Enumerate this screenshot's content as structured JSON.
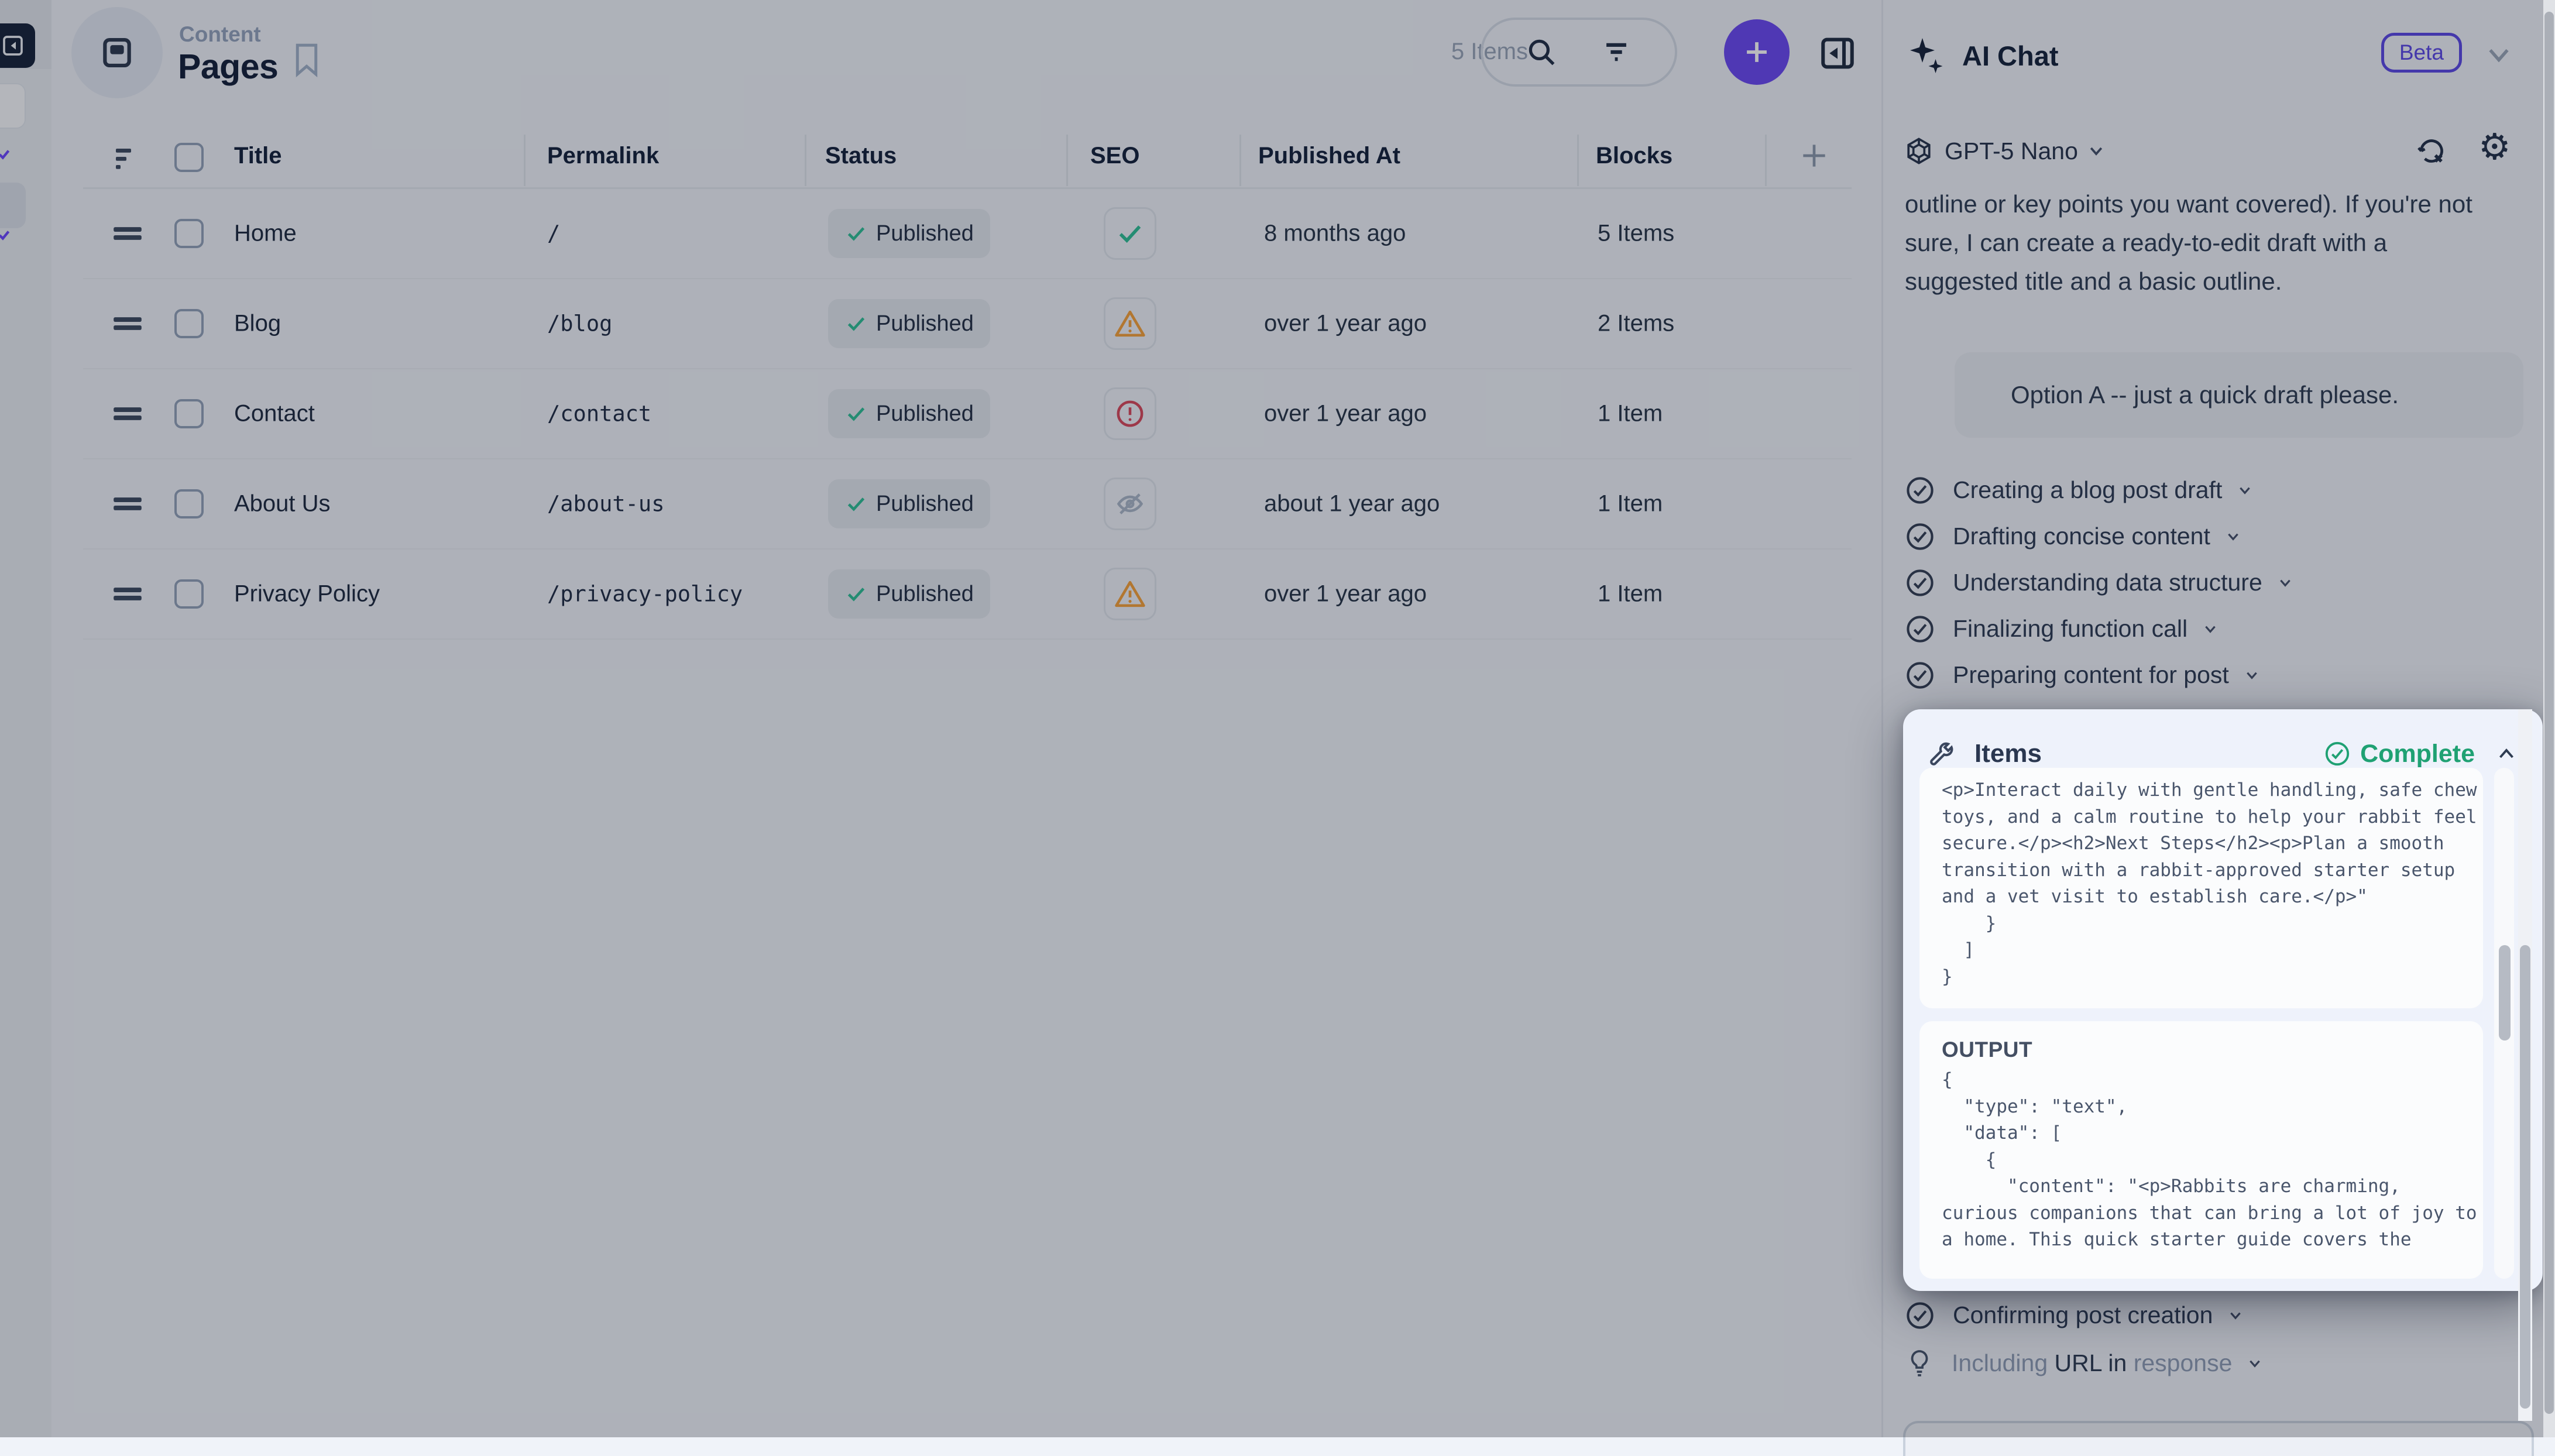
{
  "header": {
    "breadcrumb": "Content",
    "title": "Pages",
    "items_count": "5 Items"
  },
  "table": {
    "columns": [
      "Title",
      "Permalink",
      "Status",
      "SEO",
      "Published At",
      "Blocks"
    ],
    "rows": [
      {
        "title": "Home",
        "permalink": "/",
        "status": "Published",
        "seo": "check",
        "published_at": "8 months ago",
        "blocks": "5 Items"
      },
      {
        "title": "Blog",
        "permalink": "/blog",
        "status": "Published",
        "seo": "warning",
        "published_at": "over 1 year ago",
        "blocks": "2 Items"
      },
      {
        "title": "Contact",
        "permalink": "/contact",
        "status": "Published",
        "seo": "error",
        "published_at": "over 1 year ago",
        "blocks": "1 Item"
      },
      {
        "title": "About Us",
        "permalink": "/about-us",
        "status": "Published",
        "seo": "hidden",
        "published_at": "about 1 year ago",
        "blocks": "1 Item"
      },
      {
        "title": "Privacy Policy",
        "permalink": "/privacy-policy",
        "status": "Published",
        "seo": "warning",
        "published_at": "over 1 year ago",
        "blocks": "1 Item"
      }
    ]
  },
  "ai_panel": {
    "title": "AI Chat",
    "badge": "Beta",
    "model": "GPT-5 Nano",
    "assistant_message_lines": [
      "outline or key points you want covered). If you're not",
      "sure, I can create a ready-to-edit draft with a",
      "suggested title and a basic outline."
    ],
    "user_message": "Option A -- just a quick draft please.",
    "tasks": [
      "Creating a blog post draft",
      "Drafting concise content",
      "Understanding data structure",
      "Finalizing function call",
      "Preparing content for post"
    ],
    "tool_card": {
      "label": "Items",
      "status": "Complete",
      "input_lines": [
        "<p>Interact daily with gentle handling, safe chew",
        "toys, and a calm routine to help your rabbit feel",
        "secure.</p><h2>Next Steps</h2><p>Plan a smooth",
        "transition with a rabbit-approved starter setup",
        "and a vet visit to establish care.</p>\"",
        "    }",
        "  ]",
        "}"
      ],
      "output_label": "OUTPUT",
      "output_lines": [
        "{",
        "  \"type\": \"text\",",
        "  \"data\": [",
        "    {",
        "      \"content\": \"<p>Rabbits are charming,",
        "curious companions that can bring a lot of joy to",
        "a home. This quick starter guide covers the"
      ]
    },
    "task_after": "Confirming post creation",
    "thinking_item_parts": [
      {
        "text": "Including ",
        "muted": true
      },
      {
        "text": "URL ",
        "muted": false
      },
      {
        "text": "in ",
        "muted": false
      },
      {
        "text": "response",
        "muted": true
      }
    ]
  },
  "colors": {
    "accent_purple": "#6a48f2",
    "status_green": "#2ebf96",
    "complete_green": "#1fa173",
    "warning_orange": "#f6a13a",
    "error_red": "#d8495c",
    "hidden_gray": "#a9b6c8"
  }
}
